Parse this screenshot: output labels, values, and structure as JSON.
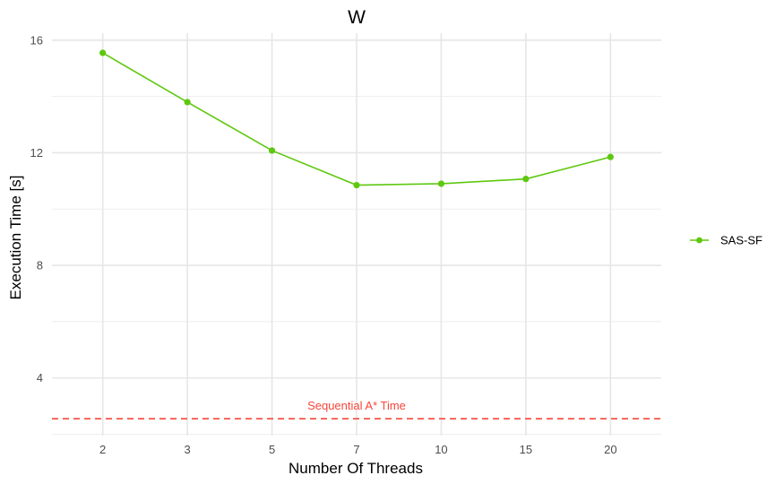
{
  "chart_data": {
    "type": "line",
    "title": "W",
    "xlabel": "Number Of Threads",
    "ylabel": "Execution Time [s]",
    "categories": [
      "2",
      "3",
      "5",
      "7",
      "10",
      "15",
      "20"
    ],
    "series": [
      {
        "name": "SAS-SF",
        "color": "#5ec80f",
        "values": [
          15.55,
          13.8,
          12.08,
          10.85,
          10.9,
          11.07,
          11.85
        ]
      }
    ],
    "reference_line": {
      "label": "Sequential A* Time",
      "value": 2.55,
      "color": "#f8473a",
      "style": "dashed"
    },
    "ylim": [
      1.95,
      16.25
    ],
    "yticks": [
      4,
      8,
      12,
      16
    ],
    "grid": true,
    "legend_position": "right"
  }
}
